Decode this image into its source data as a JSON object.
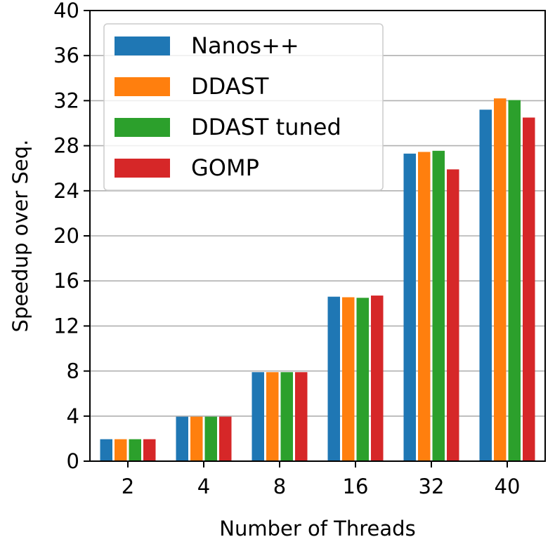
{
  "chart_data": {
    "type": "bar",
    "title": "",
    "xlabel": "Number of Threads",
    "ylabel": "Speedup over Seq.",
    "categories": [
      "2",
      "4",
      "8",
      "16",
      "32",
      "40"
    ],
    "ylim": [
      0,
      40
    ],
    "yticks": [
      "0",
      "4",
      "8",
      "12",
      "16",
      "20",
      "24",
      "28",
      "32",
      "36",
      "40"
    ],
    "grid": "horizontal",
    "legend_position": "top-left",
    "series": [
      {
        "name": "Nanos++",
        "color": "#1f77b4",
        "values": [
          1.95,
          3.95,
          7.9,
          14.6,
          27.3,
          31.2
        ]
      },
      {
        "name": "DDAST",
        "color": "#ff7f0e",
        "values": [
          1.95,
          3.95,
          7.9,
          14.55,
          27.45,
          32.2
        ]
      },
      {
        "name": "DDAST tuned",
        "color": "#2ca02c",
        "values": [
          1.95,
          3.95,
          7.9,
          14.5,
          27.55,
          32.05
        ]
      },
      {
        "name": "GOMP",
        "color": "#d62728",
        "values": [
          1.95,
          3.95,
          7.9,
          14.7,
          25.9,
          30.5
        ]
      }
    ]
  }
}
